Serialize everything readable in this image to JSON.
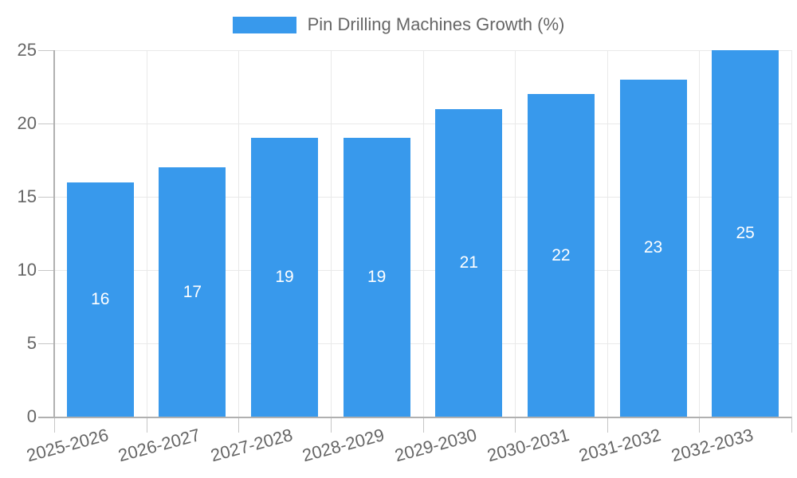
{
  "chart_data": {
    "type": "bar",
    "title": "Pin Drilling Machines Growth (%)",
    "legend": [
      "Pin Drilling Machines Growth (%)"
    ],
    "legend_position": "top",
    "categories": [
      "2025-2026",
      "2026-2027",
      "2027-2028",
      "2028-2029",
      "2029-2030",
      "2030-2031",
      "2031-2032",
      "2032-2033"
    ],
    "values": [
      16,
      17,
      19,
      19,
      21,
      22,
      23,
      25
    ],
    "value_labels_inside_bars": true,
    "xlabel": "",
    "ylabel": "",
    "ylim": [
      0,
      25
    ],
    "yticks": [
      0,
      5,
      10,
      15,
      20,
      25
    ],
    "grid": true
  },
  "colors": {
    "bar": "#3899ec",
    "value_label": "#ffffff",
    "grid": "#e9e9e9",
    "axis": "#b0b0b0",
    "tick": "#c6c6c6",
    "tick_label": "#666666"
  }
}
